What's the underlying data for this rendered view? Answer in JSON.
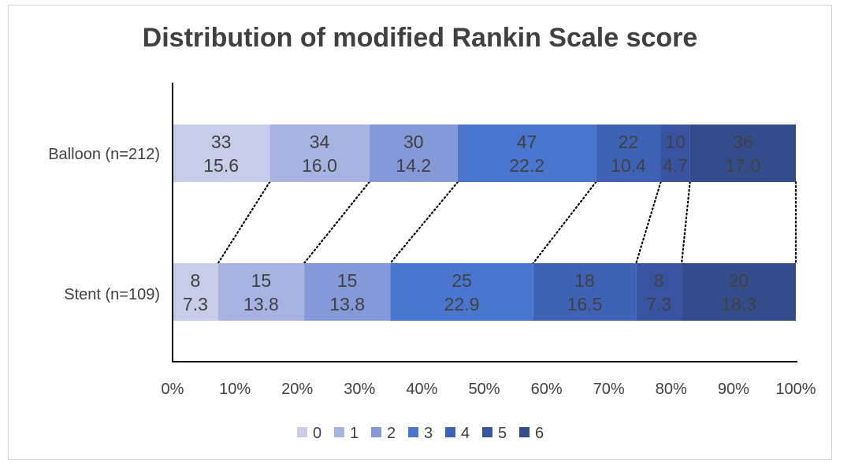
{
  "chart_data": {
    "type": "bar",
    "orientation": "horizontal",
    "stacked": "percent",
    "title": "Distribution of modified Rankin Scale score",
    "categories": [
      "Balloon (n=212)",
      "Stent (n=109)"
    ],
    "series": [
      {
        "name": "0",
        "color": "#c6cde9",
        "counts": [
          33,
          8
        ],
        "values": [
          15.6,
          7.3
        ]
      },
      {
        "name": "1",
        "color": "#a7b3e0",
        "counts": [
          34,
          15
        ],
        "values": [
          16.0,
          13.8
        ]
      },
      {
        "name": "2",
        "color": "#8598d8",
        "counts": [
          30,
          15
        ],
        "values": [
          14.2,
          13.8
        ]
      },
      {
        "name": "3",
        "color": "#4a76cf",
        "counts": [
          47,
          25
        ],
        "values": [
          22.2,
          22.9
        ]
      },
      {
        "name": "4",
        "color": "#3d62b6",
        "counts": [
          22,
          18
        ],
        "values": [
          10.4,
          16.5
        ]
      },
      {
        "name": "5",
        "color": "#3854a0",
        "counts": [
          10,
          8
        ],
        "values": [
          4.7,
          7.3
        ]
      },
      {
        "name": "6",
        "color": "#324c8c",
        "counts": [
          36,
          20
        ],
        "values": [
          17.0,
          18.3
        ]
      }
    ],
    "x_ticks": [
      "0%",
      "10%",
      "20%",
      "30%",
      "40%",
      "50%",
      "60%",
      "70%",
      "80%",
      "90%",
      "100%"
    ],
    "xlim": [
      0,
      100
    ],
    "grid": false,
    "legend_position": "bottom",
    "connector_lines": "dotted"
  }
}
